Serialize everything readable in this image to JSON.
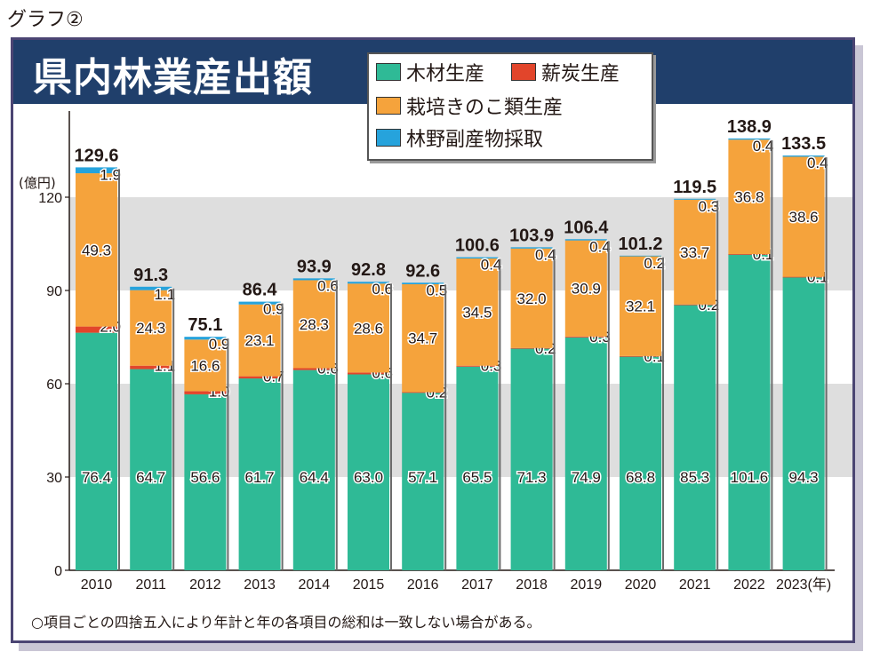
{
  "caption": "グラフ②",
  "chart_data": {
    "type": "bar",
    "stacked": true,
    "title": "県内林業産出額",
    "ylabel": "(億円)",
    "xlabel_suffix": "(年)",
    "ylim": [
      0,
      150
    ],
    "yticks": [
      0,
      30,
      60,
      90,
      120
    ],
    "categories": [
      "2010",
      "2011",
      "2012",
      "2013",
      "2014",
      "2015",
      "2016",
      "2017",
      "2018",
      "2019",
      "2020",
      "2021",
      "2022",
      "2023"
    ],
    "totals": [
      129.6,
      91.3,
      75.1,
      86.4,
      93.9,
      92.8,
      92.6,
      100.6,
      103.9,
      106.4,
      101.2,
      119.5,
      138.9,
      133.5
    ],
    "series": [
      {
        "name": "木材生産",
        "color": "#2fba96",
        "values": [
          76.4,
          64.7,
          56.6,
          61.7,
          64.4,
          63.0,
          57.1,
          65.5,
          71.3,
          74.9,
          68.8,
          85.3,
          101.6,
          94.3
        ]
      },
      {
        "name": "薪炭生産",
        "color": "#e2452b",
        "values": [
          2.0,
          1.1,
          1.0,
          0.7,
          0.6,
          0.6,
          0.2,
          0.3,
          0.2,
          0.3,
          0.1,
          0.2,
          0.1,
          0.1
        ]
      },
      {
        "name": "栽培きのこ類生産",
        "color": "#f5a33c",
        "values": [
          49.3,
          24.3,
          16.6,
          23.1,
          28.3,
          28.6,
          34.7,
          34.5,
          32.0,
          30.9,
          32.1,
          33.7,
          36.8,
          38.6
        ]
      },
      {
        "name": "林野副産物採取",
        "color": "#26a3dc",
        "values": [
          1.9,
          1.1,
          0.9,
          0.9,
          0.6,
          0.6,
          0.5,
          0.4,
          0.4,
          0.4,
          0.2,
          0.3,
          0.4,
          0.4
        ]
      }
    ]
  },
  "note": "○項目ごとの四捨五入により年計と年の各項目の総和は一致しない場合がある。"
}
